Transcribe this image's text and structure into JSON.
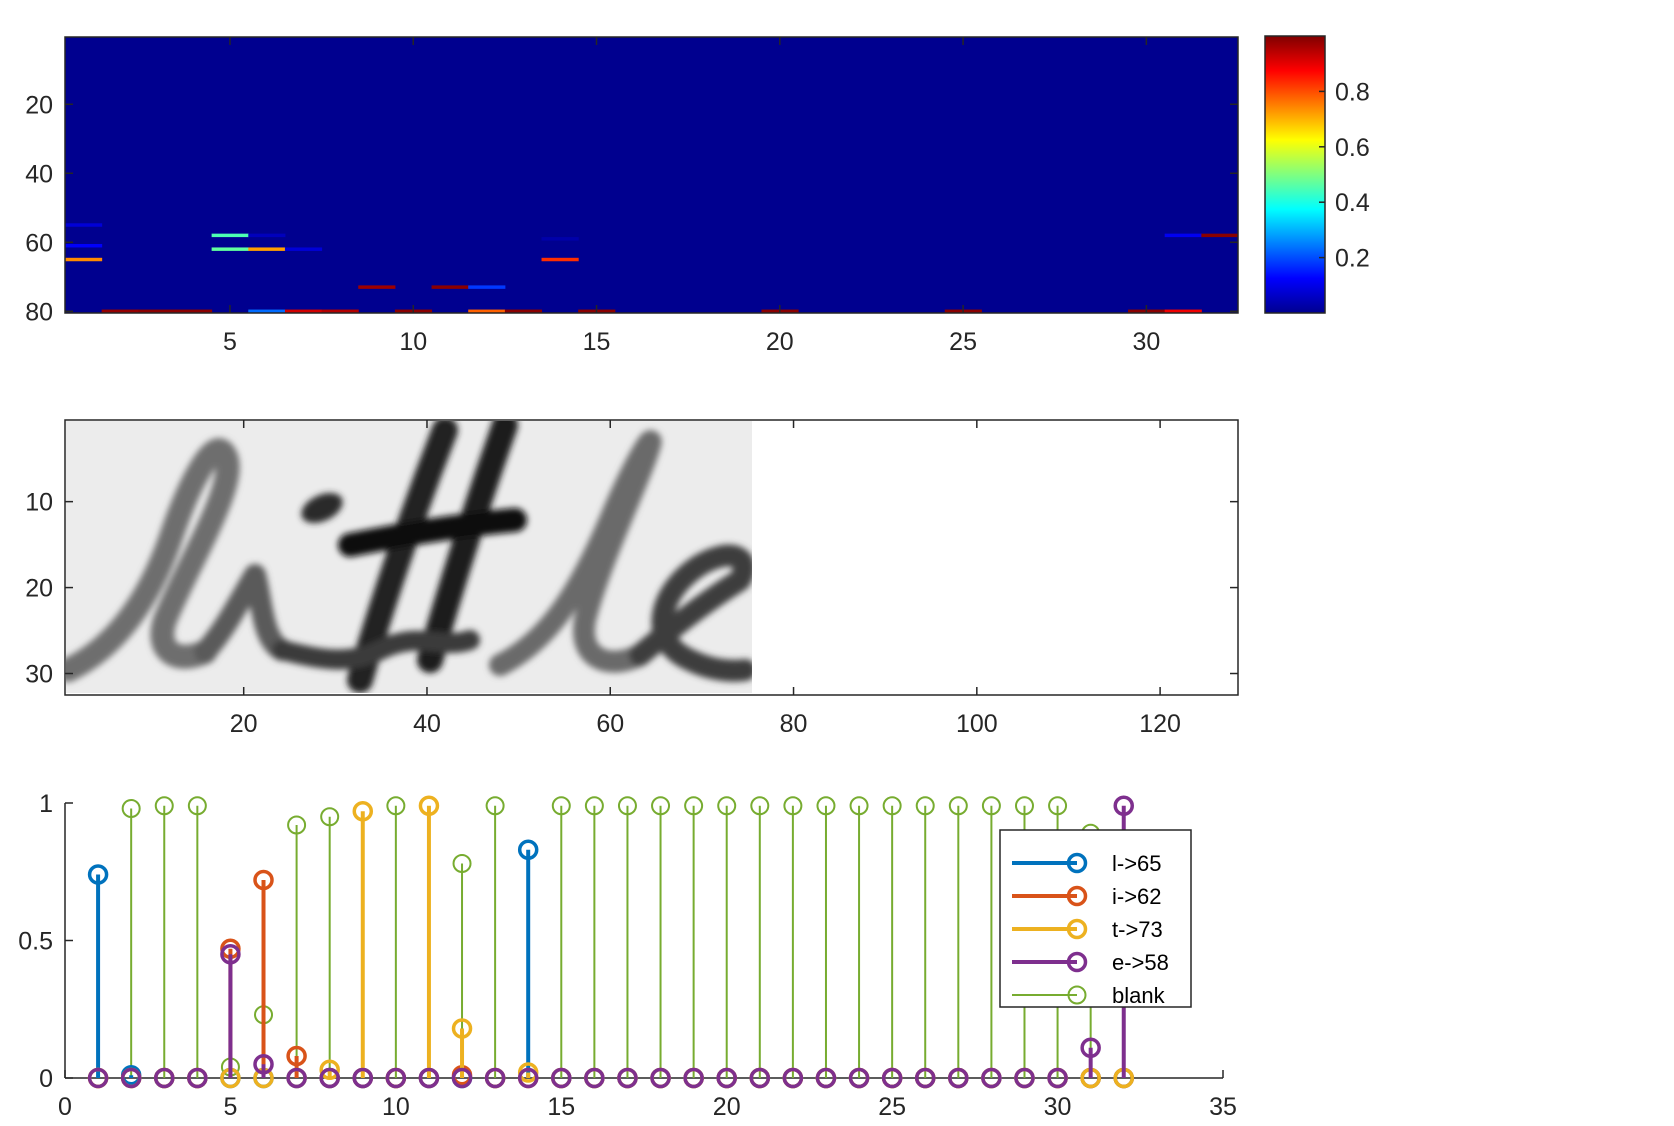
{
  "chart_data": [
    {
      "type": "heatmap",
      "x_range": [
        0.5,
        32.5
      ],
      "y_range": [
        1,
        80
      ],
      "y_reversed": true,
      "xticks": [
        "5",
        "10",
        "15",
        "20",
        "25",
        "30"
      ],
      "yticks": [
        "20",
        "40",
        "60",
        "80"
      ],
      "colormap": "jet",
      "background_value": 0,
      "colorbar": {
        "range": [
          0,
          1
        ],
        "ticks": [
          "0.2",
          "0.4",
          "0.6",
          "0.8"
        ]
      },
      "highlights": [
        {
          "x": 1,
          "y": 55,
          "value": 0.08
        },
        {
          "x": 1,
          "y": 61,
          "value": 0.12
        },
        {
          "x": 1,
          "y": 65,
          "value": 0.74
        },
        {
          "x": 5,
          "y": 58,
          "value": 0.45
        },
        {
          "x": 5,
          "y": 62,
          "value": 0.47
        },
        {
          "x": 6,
          "y": 58,
          "value": 0.05
        },
        {
          "x": 6,
          "y": 62,
          "value": 0.72
        },
        {
          "x": 7,
          "y": 62,
          "value": 0.08
        },
        {
          "x": 9,
          "y": 73,
          "value": 0.97
        },
        {
          "x": 11,
          "y": 73,
          "value": 0.99
        },
        {
          "x": 12,
          "y": 73,
          "value": 0.18
        },
        {
          "x": 14,
          "y": 59,
          "value": 0.03
        },
        {
          "x": 14,
          "y": 65,
          "value": 0.83
        },
        {
          "x": 31,
          "y": 58,
          "value": 0.11
        },
        {
          "x": 32,
          "y": 58,
          "value": 0.99
        },
        {
          "x": 2,
          "y": 80,
          "value": 0.98
        },
        {
          "x": 3,
          "y": 80,
          "value": 0.99
        },
        {
          "x": 4,
          "y": 80,
          "value": 0.99
        },
        {
          "x": 6,
          "y": 80,
          "value": 0.23
        },
        {
          "x": 7,
          "y": 80,
          "value": 0.92
        },
        {
          "x": 8,
          "y": 80,
          "value": 0.95
        },
        {
          "x": 10,
          "y": 80,
          "value": 0.99
        },
        {
          "x": 12,
          "y": 80,
          "value": 0.78
        },
        {
          "x": 13,
          "y": 80,
          "value": 0.99
        },
        {
          "x": 15,
          "y": 80,
          "value": 0.99
        },
        {
          "x": 20,
          "y": 80,
          "value": 0.99
        },
        {
          "x": 25,
          "y": 80,
          "value": 0.99
        },
        {
          "x": 30,
          "y": 80,
          "value": 0.99
        },
        {
          "x": 31,
          "y": 80,
          "value": 0.89
        }
      ]
    },
    {
      "type": "image",
      "x_range": [
        0.5,
        128.5
      ],
      "y_range": [
        0.5,
        32.5
      ],
      "y_reversed": true,
      "xticks": [
        "20",
        "40",
        "60",
        "80",
        "100",
        "120"
      ],
      "yticks": [
        "10",
        "20",
        "30"
      ],
      "content": "grayscale handwritten word",
      "word": "little",
      "image_extent_x": [
        0.5,
        75.5
      ]
    },
    {
      "type": "stem",
      "x": [
        1,
        2,
        3,
        4,
        5,
        6,
        7,
        8,
        9,
        10,
        11,
        12,
        13,
        14,
        15,
        16,
        17,
        18,
        19,
        20,
        21,
        22,
        23,
        24,
        25,
        26,
        27,
        28,
        29,
        30,
        31,
        32
      ],
      "xlim": [
        0,
        35
      ],
      "ylim": [
        0,
        1
      ],
      "xticks": [
        "0",
        "5",
        "10",
        "15",
        "20",
        "25",
        "30",
        "35"
      ],
      "yticks": [
        "0",
        "0.5",
        "1"
      ],
      "legend_position": "right, upper-middle",
      "series": [
        {
          "name": "l->65",
          "color": "#0072BD",
          "width": 4,
          "values": [
            0.74,
            0.01,
            0,
            0,
            0,
            0,
            0,
            0,
            0,
            0,
            0,
            0,
            0,
            0.83,
            0,
            0,
            0,
            0,
            0,
            0,
            0,
            0,
            0,
            0,
            0,
            0,
            0,
            0,
            0,
            0,
            0,
            0
          ]
        },
        {
          "name": "i->62",
          "color": "#D95319",
          "width": 4,
          "values": [
            0,
            0,
            0,
            0,
            0.47,
            0.72,
            0.08,
            0,
            0,
            0,
            0,
            0.01,
            0,
            0,
            0,
            0,
            0,
            0,
            0,
            0,
            0,
            0,
            0,
            0,
            0,
            0,
            0,
            0,
            0,
            0,
            0,
            0
          ]
        },
        {
          "name": "t->73",
          "color": "#EDB120",
          "width": 4,
          "values": [
            0,
            0,
            0,
            0,
            0,
            0,
            0,
            0.03,
            0.97,
            0,
            0.99,
            0.18,
            0,
            0.02,
            0,
            0,
            0,
            0,
            0,
            0,
            0,
            0,
            0,
            0,
            0,
            0,
            0,
            0,
            0,
            0,
            0,
            0
          ]
        },
        {
          "name": "e->58",
          "color": "#7E2F8E",
          "width": 4,
          "values": [
            0,
            0,
            0,
            0,
            0.45,
            0.05,
            0,
            0,
            0,
            0,
            0,
            0,
            0,
            0,
            0,
            0,
            0,
            0,
            0,
            0,
            0,
            0,
            0,
            0,
            0,
            0,
            0,
            0,
            0,
            0,
            0.11,
            0.99
          ]
        },
        {
          "name": "blank",
          "color": "#77AC30",
          "width": 2,
          "values": [
            0,
            0.98,
            0.99,
            0.99,
            0.04,
            0.23,
            0.92,
            0.95,
            0,
            0.99,
            0,
            0.78,
            0.99,
            0,
            0.99,
            0.99,
            0.99,
            0.99,
            0.99,
            0.99,
            0.99,
            0.99,
            0.99,
            0.99,
            0.99,
            0.99,
            0.99,
            0.99,
            0.99,
            0.99,
            0.89,
            0
          ]
        }
      ]
    }
  ]
}
